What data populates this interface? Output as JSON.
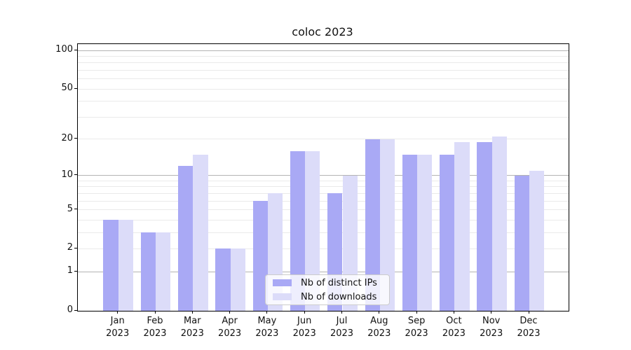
{
  "chart_data": {
    "type": "bar",
    "title": "coloc 2023",
    "categories": [
      "Jan",
      "Feb",
      "Mar",
      "Apr",
      "May",
      "Jun",
      "Jul",
      "Aug",
      "Sep",
      "Oct",
      "Nov",
      "Dec"
    ],
    "year_label": "2023",
    "series": [
      {
        "name": "Nb of distinct IPs",
        "color": "#a9a9f5",
        "values": [
          4,
          3,
          12,
          2,
          6,
          16,
          7,
          20,
          15,
          15,
          19,
          10
        ]
      },
      {
        "name": "Nb of downloads",
        "color": "#dcdcf9",
        "values": [
          4,
          3,
          15,
          2,
          7,
          16,
          10,
          20,
          15,
          19,
          21,
          11
        ]
      }
    ],
    "xlabel": "",
    "ylabel": "",
    "yscale": "log1p",
    "ylim": [
      0,
      112
    ],
    "y_major_ticks": [
      0,
      1,
      2,
      5,
      10,
      20,
      50,
      100
    ],
    "y_major_gridlines": [
      1,
      10,
      100
    ],
    "y_minor_gridlines": [
      3,
      4,
      6,
      7,
      8,
      9,
      30,
      40,
      60,
      70,
      80,
      90
    ],
    "grid": true,
    "legend_position": "lower center"
  },
  "colors": {
    "axis": "#000000",
    "major_grid": "#b3b3b3",
    "minor_grid": "#eaeaea",
    "legend_border": "#cccccc"
  }
}
